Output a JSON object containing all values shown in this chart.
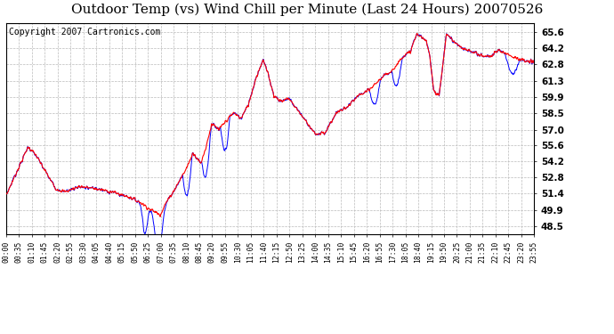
{
  "title": "Outdoor Temp (vs) Wind Chill per Minute (Last 24 Hours) 20070526",
  "copyright_text": "Copyright 2007 Cartronics.com",
  "y_ticks": [
    48.5,
    49.9,
    51.4,
    52.8,
    54.2,
    55.6,
    57.0,
    58.5,
    59.9,
    61.3,
    62.8,
    64.2,
    65.6
  ],
  "ylim": [
    47.8,
    66.4
  ],
  "x_tick_labels": [
    "00:00",
    "00:35",
    "01:10",
    "01:45",
    "02:20",
    "02:55",
    "03:30",
    "04:05",
    "04:40",
    "05:15",
    "05:50",
    "06:25",
    "07:00",
    "07:35",
    "08:10",
    "08:45",
    "09:20",
    "09:55",
    "10:30",
    "11:05",
    "11:40",
    "12:15",
    "12:50",
    "13:25",
    "14:00",
    "14:35",
    "15:10",
    "15:45",
    "16:20",
    "16:55",
    "17:30",
    "18:05",
    "18:40",
    "19:15",
    "19:50",
    "20:25",
    "21:00",
    "21:35",
    "22:10",
    "22:45",
    "23:20",
    "23:55"
  ],
  "red_color": "#ff0000",
  "blue_color": "#0000ff",
  "bg_color": "#ffffff",
  "grid_color": "#bbbbbb",
  "title_fontsize": 11,
  "copyright_fontsize": 7
}
